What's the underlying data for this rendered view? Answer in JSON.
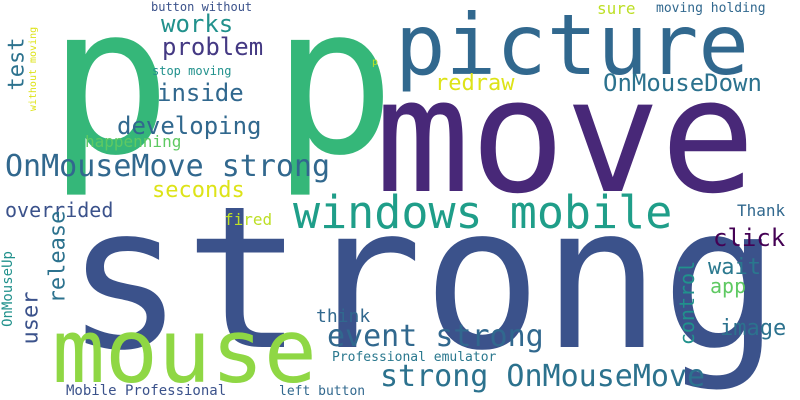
{
  "words": [
    {
      "text": "p",
      "color": "#35b779"
    },
    {
      "text": "p",
      "color": "#35b779"
    },
    {
      "text": "move",
      "color": "#482878"
    },
    {
      "text": "strong",
      "color": "#3b528b"
    },
    {
      "text": "picture",
      "color": "#31688e"
    },
    {
      "text": "mouse",
      "color": "#8fd744"
    },
    {
      "text": "windows mobile",
      "color": "#1f9e89"
    },
    {
      "text": "OnMouseMove strong",
      "color": "#31688e"
    },
    {
      "text": "event strong",
      "color": "#31688e"
    },
    {
      "text": "strong OnMouseMove",
      "color": "#2c728e"
    },
    {
      "text": "OnMouseDown",
      "color": "#2c728e"
    },
    {
      "text": "developing",
      "color": "#31688e"
    },
    {
      "text": "problem",
      "color": "#443983"
    },
    {
      "text": "works",
      "color": "#21918c"
    },
    {
      "text": "inside",
      "color": "#31688e"
    },
    {
      "text": "test",
      "color": "#2c728e"
    },
    {
      "text": "redraw",
      "color": "#dde318"
    },
    {
      "text": "seconds",
      "color": "#dde318"
    },
    {
      "text": "overrided",
      "color": "#3b528b"
    },
    {
      "text": "happenning",
      "color": "#5ec962"
    },
    {
      "text": "click",
      "color": "#440154"
    },
    {
      "text": "wait",
      "color": "#2a788e"
    },
    {
      "text": "app",
      "color": "#5ec962"
    },
    {
      "text": "image",
      "color": "#2c728e"
    },
    {
      "text": "Thank",
      "color": "#31688e"
    },
    {
      "text": "fired",
      "color": "#bddf26"
    },
    {
      "text": "think",
      "color": "#31688e"
    },
    {
      "text": "release",
      "color": "#2c728e"
    },
    {
      "text": "user",
      "color": "#3b528b"
    },
    {
      "text": "control",
      "color": "#21918c"
    },
    {
      "text": "OnMouseUp",
      "color": "#21918c"
    },
    {
      "text": "Professional emulator",
      "color": "#2a788e"
    },
    {
      "text": "Mobile Professional",
      "color": "#3b528b"
    },
    {
      "text": "left button",
      "color": "#31688e"
    },
    {
      "text": "button without",
      "color": "#3b528b"
    },
    {
      "text": "sure",
      "color": "#bddf26"
    },
    {
      "text": "moving holding",
      "color": "#31688e"
    },
    {
      "text": "stop moving",
      "color": "#21918c"
    },
    {
      "text": "without moving",
      "color": "#dde318"
    },
    {
      "text": "p",
      "color": "#bddf26"
    }
  ]
}
